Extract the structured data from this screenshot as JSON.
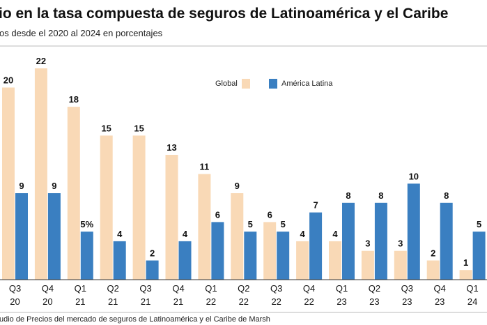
{
  "chart_data": {
    "type": "bar",
    "title": "io en la tasa compuesta de seguros de Latinoamérica y el Caribe",
    "subtitle": "os desde el 2020 al 2024 en porcentajes",
    "categories": [
      [
        "Q3",
        "20"
      ],
      [
        "Q4",
        "20"
      ],
      [
        "Q1",
        "21"
      ],
      [
        "Q2",
        "21"
      ],
      [
        "Q3",
        "21"
      ],
      [
        "Q4",
        "21"
      ],
      [
        "Q1",
        "22"
      ],
      [
        "Q2",
        "22"
      ],
      [
        "Q3",
        "22"
      ],
      [
        "Q4",
        "22"
      ],
      [
        "Q1",
        "23"
      ],
      [
        "Q2",
        "23"
      ],
      [
        "Q3",
        "23"
      ],
      [
        "Q4",
        "23"
      ],
      [
        "Q1",
        "24"
      ]
    ],
    "series": [
      {
        "name": "Global",
        "color": "#f9d9b6",
        "values": [
          20,
          22,
          18,
          15,
          15,
          13,
          11,
          9,
          6,
          4,
          4,
          3,
          3,
          2,
          1
        ],
        "labels": [
          "20",
          "22",
          "18",
          "15",
          "15",
          "13",
          "11",
          "9",
          "6",
          "4",
          "4",
          "3",
          "3",
          "2",
          "1"
        ]
      },
      {
        "name": "América Latina",
        "color": "#3a7fc1",
        "values": [
          9,
          9,
          5,
          4,
          2,
          4,
          6,
          5,
          5,
          7,
          8,
          8,
          10,
          8,
          5
        ],
        "labels": [
          "9",
          "9",
          "5%",
          "4",
          "2",
          "4",
          "6",
          "5",
          "5",
          "7",
          "8",
          "8",
          "10",
          "8",
          "5"
        ]
      }
    ],
    "ylim": [
      0,
      22
    ],
    "xlabel": "",
    "ylabel": "",
    "legend_position": "top-right",
    "source": "udio de Precios del mercado de seguros de Latinoamérica y el Caribe de Marsh"
  }
}
